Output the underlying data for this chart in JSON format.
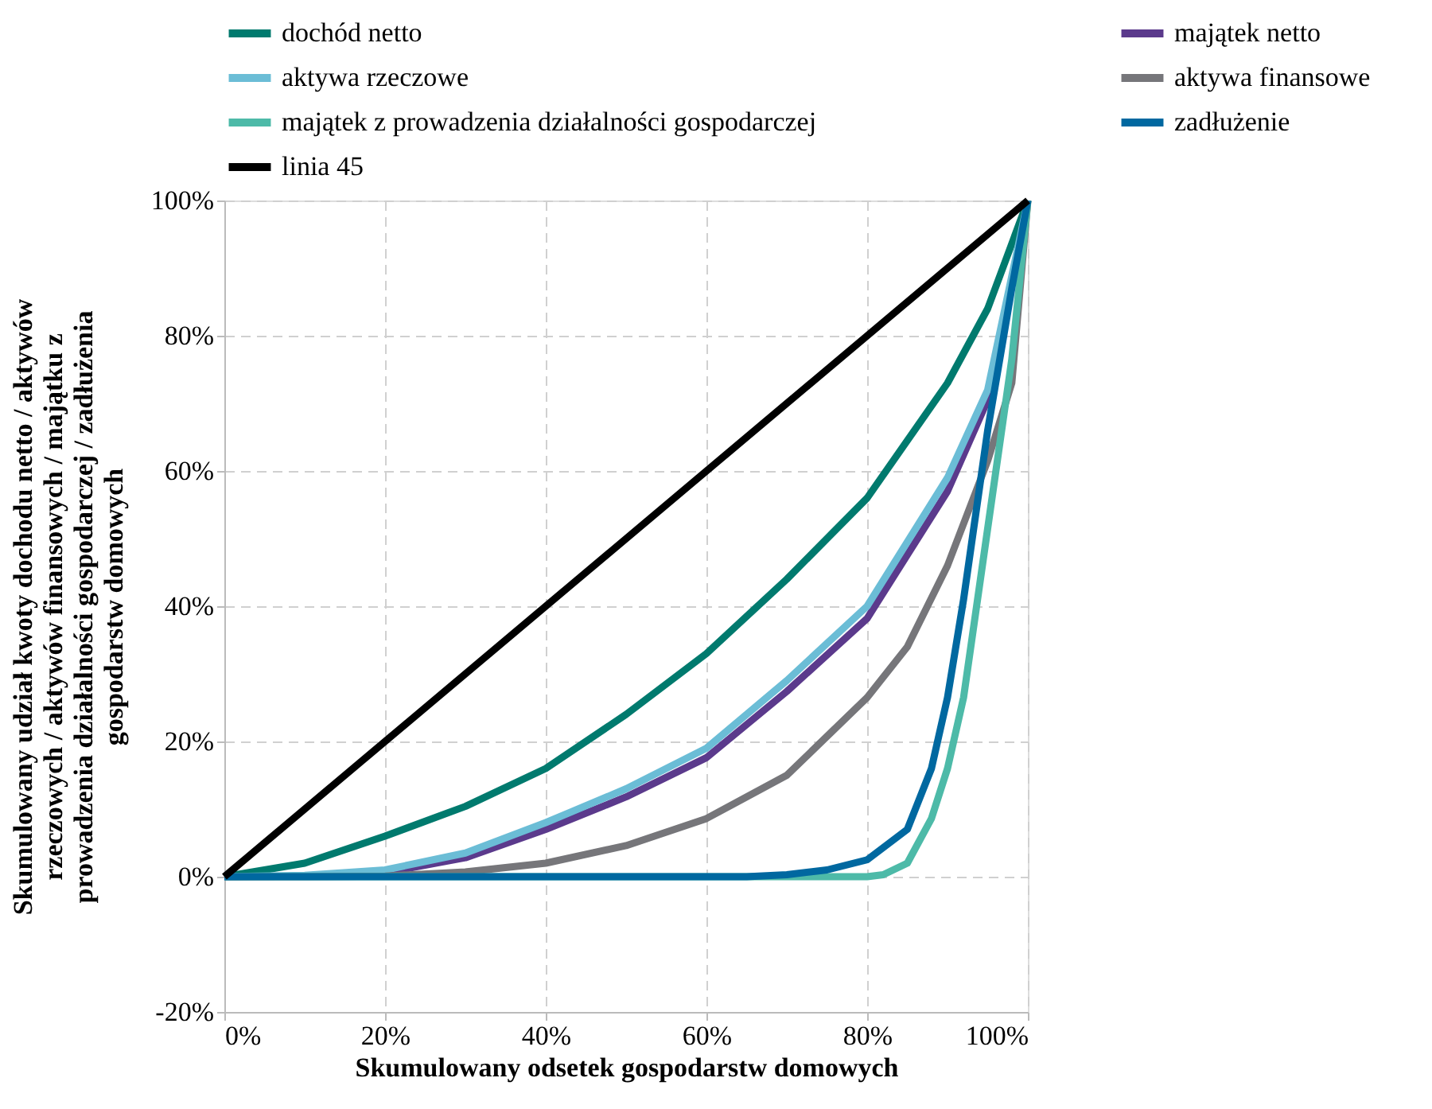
{
  "chart_data": {
    "type": "line",
    "xlabel": "Skumulowany odsetek gospodarstw domowych",
    "ylabel": "Skumulowany udział kwoty dochodu netto / aktywów\nrzeczowych / aktywów finansowych / majątku z\nprowadzenia działalności gospodarczej / zadłużenia\ngospodarstw domowych",
    "xlim": [
      0,
      100
    ],
    "ylim": [
      -20,
      100
    ],
    "xticks": [
      {
        "value": 0,
        "label": "0%"
      },
      {
        "value": 20,
        "label": "20%"
      },
      {
        "value": 40,
        "label": "40%"
      },
      {
        "value": 60,
        "label": "60%"
      },
      {
        "value": 80,
        "label": "80%"
      },
      {
        "value": 100,
        "label": "100%"
      }
    ],
    "yticks": [
      {
        "value": -20,
        "label": "-20%"
      },
      {
        "value": 0,
        "label": "0%"
      },
      {
        "value": 20,
        "label": "20%"
      },
      {
        "value": 40,
        "label": "40%"
      },
      {
        "value": 60,
        "label": "60%"
      },
      {
        "value": 80,
        "label": "80%"
      },
      {
        "value": 100,
        "label": "100%"
      }
    ],
    "grid": true,
    "legend": "top",
    "marker": "none",
    "line_style": "solid",
    "series": [
      {
        "name": "dochód netto",
        "color": "#007a6e",
        "x": [
          0,
          10,
          20,
          30,
          40,
          50,
          60,
          70,
          80,
          90,
          95,
          100
        ],
        "values": [
          0,
          2,
          6,
          10.4,
          16,
          24,
          33,
          44,
          56,
          73,
          84,
          100
        ]
      },
      {
        "name": "majątek netto",
        "color": "#5b3a8c",
        "x": [
          0,
          10,
          20,
          30,
          40,
          50,
          60,
          70,
          80,
          90,
          95,
          100
        ],
        "values": [
          0,
          0.1,
          0.6,
          2.8,
          7,
          11.8,
          17.6,
          27.4,
          38.2,
          57,
          70.5,
          100
        ]
      },
      {
        "name": "aktywa rzeczowe",
        "color": "#6bbdd6",
        "x": [
          0,
          10,
          20,
          30,
          40,
          50,
          60,
          70,
          80,
          90,
          95,
          100
        ],
        "values": [
          0,
          0.2,
          1,
          3.5,
          8,
          13,
          19,
          29,
          40,
          59,
          72,
          100
        ]
      },
      {
        "name": "aktywa finansowe",
        "color": "#76767a",
        "x": [
          0,
          10,
          20,
          30,
          40,
          50,
          60,
          70,
          80,
          85,
          90,
          95,
          98,
          100
        ],
        "values": [
          0,
          0,
          0.1,
          0.7,
          2,
          4.6,
          8.6,
          15,
          26.5,
          34,
          46,
          61.5,
          73,
          100
        ]
      },
      {
        "name": "majątek z prowadzenia działalności gospodarczej",
        "color": "#4dbaa8",
        "x": [
          0,
          20,
          40,
          60,
          80,
          82,
          85,
          88,
          90,
          92,
          95,
          98,
          100
        ],
        "values": [
          0,
          0,
          0,
          0,
          0,
          0.3,
          2,
          8.6,
          16,
          26.5,
          51.5,
          76.5,
          100
        ]
      },
      {
        "name": "zadłużenie",
        "color": "#0068a0",
        "x": [
          0,
          20,
          40,
          60,
          65,
          70,
          75,
          80,
          85,
          88,
          90,
          92,
          95,
          98,
          100
        ],
        "values": [
          0,
          0,
          0,
          0,
          0,
          0.3,
          1,
          2.5,
          7,
          16,
          26.5,
          41,
          66,
          87,
          100
        ]
      },
      {
        "name": "linia 45",
        "color": "#000000",
        "x": [
          0,
          100
        ],
        "values": [
          0,
          100
        ]
      }
    ]
  }
}
